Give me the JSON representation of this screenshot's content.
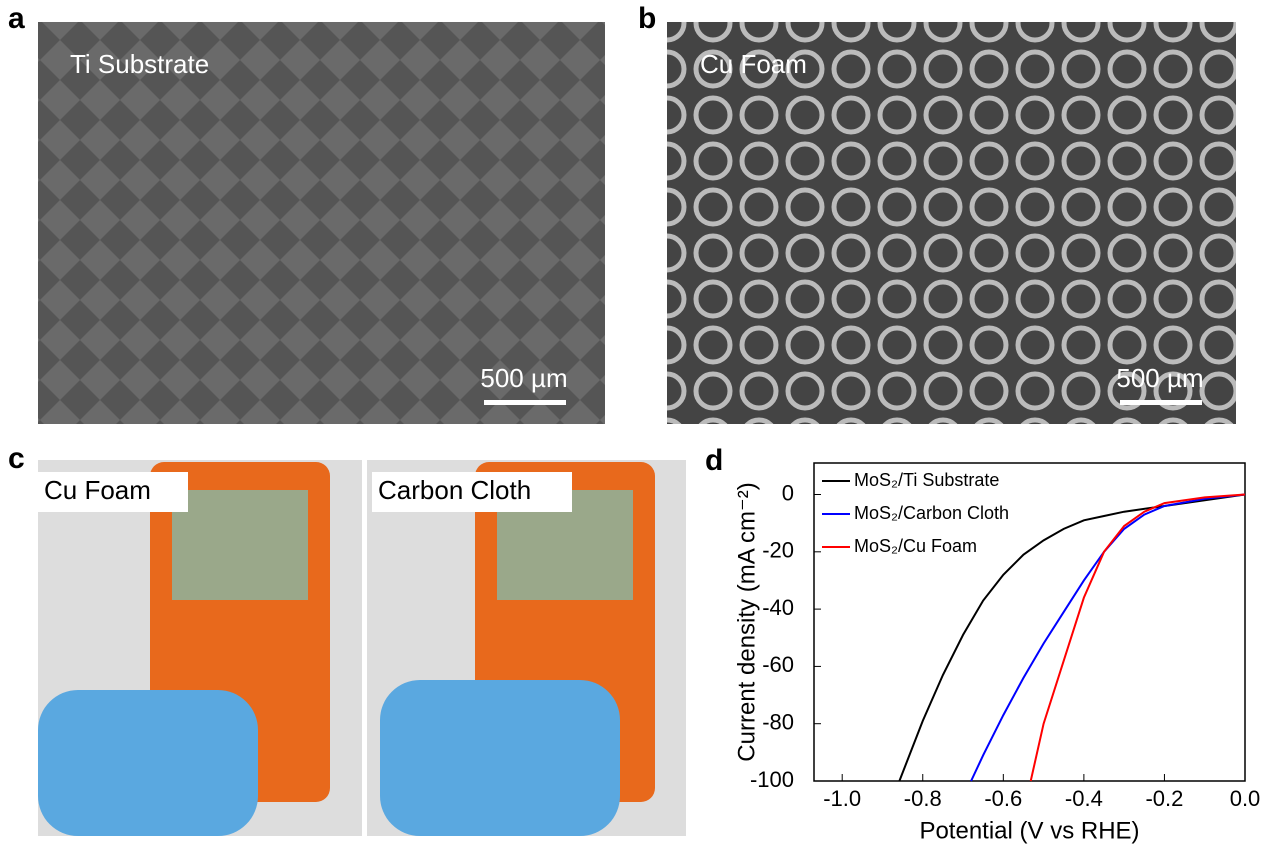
{
  "panels": [
    {
      "label": "a",
      "caption": "Ti Substrate",
      "scale_bar": "500 µm"
    },
    {
      "label": "b",
      "caption": "Cu Foam",
      "scale_bar": "500 µm"
    },
    {
      "label": "c",
      "captions": [
        "Cu Foam",
        "Carbon Cloth"
      ]
    },
    {
      "label": "d"
    }
  ],
  "chart_data": {
    "type": "line",
    "xlabel": "Potential (V vs RHE)",
    "ylabel": "Current density (mA cm⁻²)",
    "xlim": [
      -1.07,
      0
    ],
    "ylim": [
      -100,
      11
    ],
    "xticks": [
      {
        "value": -1,
        "label": "-1.0"
      },
      -0.8,
      -0.6,
      -0.4,
      -0.2,
      {
        "value": 0,
        "label": "0.0"
      }
    ],
    "yticks": [
      -100,
      -80,
      -60,
      -40,
      -20,
      0
    ],
    "legend": "upper left",
    "series": [
      {
        "name": "MoS₂/Ti Substrate",
        "color": "#000000",
        "x": [
          0,
          -0.1,
          -0.2,
          -0.3,
          -0.35,
          -0.4,
          -0.45,
          -0.5,
          -0.55,
          -0.6,
          -0.65,
          -0.7,
          -0.75,
          -0.8,
          -0.858
        ],
        "values": [
          0,
          -2,
          -4,
          -6,
          -7.5,
          -9,
          -12,
          -16,
          -21,
          -28,
          -37,
          -49,
          -63,
          -79,
          -100
        ]
      },
      {
        "name": "MoS₂/Carbon Cloth",
        "color": "#0000ff",
        "x": [
          0,
          -0.1,
          -0.2,
          -0.25,
          -0.3,
          -0.35,
          -0.4,
          -0.45,
          -0.5,
          -0.55,
          -0.6,
          -0.65,
          -0.68
        ],
        "values": [
          0,
          -1.5,
          -4,
          -7,
          -12,
          -20,
          -30,
          -41,
          -52,
          -64,
          -77,
          -91,
          -100
        ]
      },
      {
        "name": "MoS₂/Cu Foam",
        "color": "#ff0000",
        "x": [
          0,
          -0.1,
          -0.2,
          -0.25,
          -0.3,
          -0.35,
          -0.4,
          -0.45,
          -0.5,
          -0.532
        ],
        "values": [
          0,
          -1,
          -3,
          -6,
          -11,
          -20,
          -36,
          -58,
          -80,
          -100
        ]
      }
    ]
  }
}
